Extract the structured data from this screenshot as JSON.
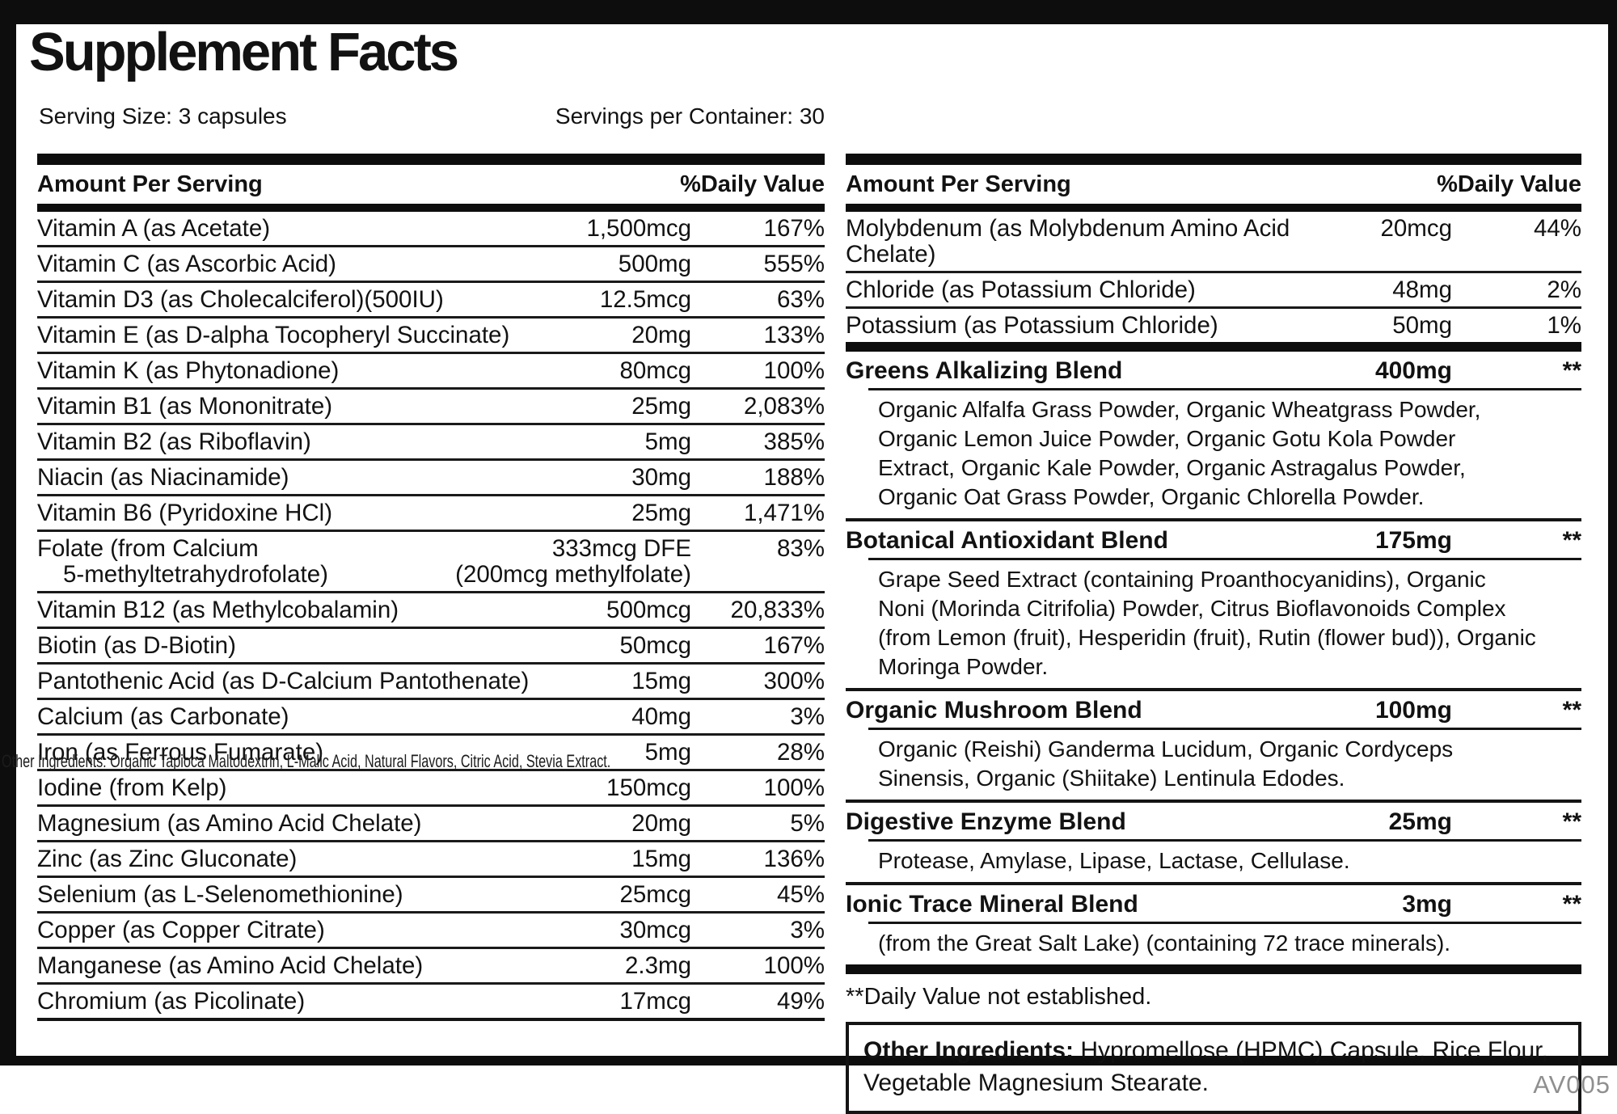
{
  "label": {
    "title": "Supplement Facts",
    "serving_size": "Serving Size: 3 capsules",
    "servings_per_container": "Servings per Container: 30",
    "column_headers": {
      "amount": "Amount Per Serving",
      "daily_value": "%Daily Value"
    }
  },
  "left_table": {
    "rows": [
      {
        "name": "Vitamin A (as Acetate)",
        "amount": "1,500mcg",
        "dv": "167%"
      },
      {
        "name": "Vitamin C (as Ascorbic Acid)",
        "amount": "500mg",
        "dv": "555%"
      },
      {
        "name": "Vitamin D3 (as Cholecalciferol)(500IU)",
        "amount": "12.5mcg",
        "dv": "63%"
      },
      {
        "name": "Vitamin E (as D-alpha Tocopheryl Succinate)",
        "amount": "20mg",
        "dv": "133%"
      },
      {
        "name": "Vitamin K (as Phytonadione)",
        "amount": "80mcg",
        "dv": "100%"
      },
      {
        "name": "Vitamin B1 (as Mononitrate)",
        "amount": "25mg",
        "dv": "2,083%"
      },
      {
        "name": "Vitamin B2 (as Riboflavin)",
        "amount": "5mg",
        "dv": "385%"
      },
      {
        "name": "Niacin (as Niacinamide)",
        "amount": "30mg",
        "dv": "188%"
      },
      {
        "name": "Vitamin B6 (Pyridoxine HCl)",
        "amount": "25mg",
        "dv": "1,471%"
      },
      {
        "name": "Folate (from Calcium",
        "name2": "5-methyltetrahydrofolate)",
        "amount": "333mcg DFE",
        "amount2": "(200mcg methylfolate)",
        "dv": "83%"
      },
      {
        "name": "Vitamin B12 (as Methylcobalamin)",
        "amount": "500mcg",
        "dv": "20,833%"
      },
      {
        "name": "Biotin (as D-Biotin)",
        "amount": "50mcg",
        "dv": "167%"
      },
      {
        "name": "Pantothenic Acid (as D-Calcium Pantothenate)",
        "amount": "15mg",
        "dv": "300%"
      },
      {
        "name": "Calcium (as Carbonate)",
        "amount": "40mg",
        "dv": "3%"
      },
      {
        "name": "Iron (as Ferrous Fumarate)",
        "amount": "5mg",
        "dv": "28%"
      },
      {
        "name": "Iodine (from Kelp)",
        "amount": "150mcg",
        "dv": "100%"
      },
      {
        "name": "Magnesium (as Amino Acid Chelate)",
        "amount": "20mg",
        "dv": "5%"
      },
      {
        "name": "Zinc (as Zinc Gluconate)",
        "amount": "15mg",
        "dv": "136%"
      },
      {
        "name": "Selenium (as L-Selenomethionine)",
        "amount": "25mcg",
        "dv": "45%"
      },
      {
        "name": "Copper (as Copper Citrate)",
        "amount": "30mcg",
        "dv": "3%"
      },
      {
        "name": "Manganese (as Amino Acid Chelate)",
        "amount": "2.3mg",
        "dv": "100%"
      },
      {
        "name": "Chromium (as Picolinate)",
        "amount": "17mcg",
        "dv": "49%"
      }
    ]
  },
  "overlay_note": "Other Ingredients: Organic Tapioca Maltodextrin, L-Malic Acid, Natural Flavors, Citric Acid, Stevia Extract.",
  "right_table": {
    "rows": [
      {
        "name": "Molybdenum (as Molybdenum Amino Acid Chelate)",
        "amount": "20mcg",
        "dv": "44%"
      },
      {
        "name": "Chloride (as Potassium Chloride)",
        "amount": "48mg",
        "dv": "2%"
      },
      {
        "name": "Potassium (as Potassium Chloride)",
        "amount": "50mg",
        "dv": "1%"
      }
    ]
  },
  "blends": [
    {
      "name": "Greens Alkalizing Blend",
      "amount": "400mg",
      "dv": "**",
      "ingredients": "Organic Alfalfa Grass Powder, Organic Wheatgrass Powder, Organic Lemon Juice Powder, Organic Gotu Kola Powder Extract, Organic Kale Powder, Organic Astragalus Powder, Organic Oat Grass Powder, Organic Chlorella Powder."
    },
    {
      "name": "Botanical Antioxidant Blend",
      "amount": "175mg",
      "dv": "**",
      "ingredients": "Grape Seed Extract (containing Proanthocyanidins), Organic Noni (Morinda Citrifolia) Powder, Citrus Bioflavonoids Complex (from Lemon (fruit), Hesperidin (fruit), Rutin (flower bud)), Organic Moringa Powder."
    },
    {
      "name": "Organic Mushroom Blend",
      "amount": "100mg",
      "dv": "**",
      "ingredients": "Organic (Reishi) Ganderma Lucidum, Organic Cordyceps Sinensis, Organic (Shiitake) Lentinula Edodes."
    },
    {
      "name": "Digestive Enzyme Blend",
      "amount": "25mg",
      "dv": "**",
      "ingredients": "Protease, Amylase, Lipase, Lactase, Cellulase."
    },
    {
      "name": "Ionic Trace Mineral Blend",
      "amount": "3mg",
      "dv": "**",
      "ingredients": "(from the Great Salt Lake) (containing 72 trace minerals)."
    }
  ],
  "footnote": "**Daily Value not established.",
  "other_ingredients": {
    "label": "Other Ingredients:",
    "text": "Hypromellose (HPMC) Capsule, Rice Flour, Vegetable Magnesium Stearate."
  },
  "footer_code": "AV005",
  "colors": {
    "ink": "#0d0d0d",
    "code_gray": "#8f8f8f"
  }
}
